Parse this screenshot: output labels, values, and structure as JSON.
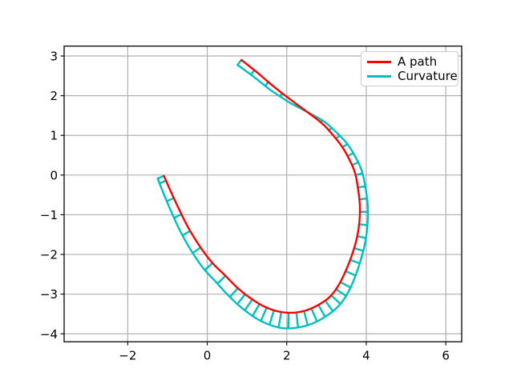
{
  "figure": {
    "background": "#FFFFFF"
  },
  "chart_data": {
    "type": "line",
    "title": "",
    "xlabel": "",
    "ylabel": "",
    "grid": true,
    "grid_color": "#B0B0B0",
    "spine_color": "#000000",
    "xlim": [
      -3.6,
      6.4
    ],
    "ylim": [
      -4.2,
      3.25
    ],
    "xticks": [
      {
        "v": -2,
        "label": "−2"
      },
      {
        "v": 0,
        "label": "0"
      },
      {
        "v": 2,
        "label": "2"
      },
      {
        "v": 4,
        "label": "4"
      },
      {
        "v": 6,
        "label": "6"
      }
    ],
    "yticks": [
      {
        "v": 3,
        "label": "3"
      },
      {
        "v": 2,
        "label": "2"
      },
      {
        "v": 1,
        "label": "1"
      },
      {
        "v": 0,
        "label": "0"
      },
      {
        "v": -1,
        "label": "−1"
      },
      {
        "v": -2,
        "label": "−2"
      },
      {
        "v": -3,
        "label": "−3"
      },
      {
        "v": -4,
        "label": "−4"
      }
    ],
    "legend": {
      "position": "upper right",
      "entries": [
        {
          "label": "A path",
          "color": "#FF0000"
        },
        {
          "label": "Curvature",
          "color": "#00BFBF"
        }
      ]
    },
    "series": [
      {
        "name": "A path",
        "kind": "path",
        "color": "#FF0000",
        "points": [
          [
            0.86,
            2.9
          ],
          [
            1.25,
            2.59
          ],
          [
            1.66,
            2.24
          ],
          [
            2.07,
            1.92
          ],
          [
            2.5,
            1.6
          ],
          [
            2.89,
            1.3
          ],
          [
            3.16,
            1.01
          ],
          [
            3.4,
            0.7
          ],
          [
            3.58,
            0.38
          ],
          [
            3.72,
            0.04
          ],
          [
            3.8,
            -0.4
          ],
          [
            3.84,
            -0.82
          ],
          [
            3.82,
            -1.24
          ],
          [
            3.75,
            -1.64
          ],
          [
            3.63,
            -2.04
          ],
          [
            3.48,
            -2.42
          ],
          [
            3.3,
            -2.78
          ],
          [
            3.08,
            -3.07
          ],
          [
            2.78,
            -3.28
          ],
          [
            2.45,
            -3.42
          ],
          [
            2.1,
            -3.47
          ],
          [
            1.76,
            -3.43
          ],
          [
            1.43,
            -3.31
          ],
          [
            1.1,
            -3.11
          ],
          [
            0.77,
            -2.85
          ],
          [
            0.44,
            -2.52
          ],
          [
            0.1,
            -2.18
          ],
          [
            -0.21,
            -1.76
          ],
          [
            -0.48,
            -1.32
          ],
          [
            -0.7,
            -0.88
          ],
          [
            -0.9,
            -0.45
          ],
          [
            -1.09,
            -0.02
          ]
        ]
      },
      {
        "name": "Curvature",
        "kind": "curvature_comb",
        "color": "#00BFBF",
        "comb_profile": [
          [
            0,
            0.16
          ],
          [
            2,
            0.12
          ],
          [
            3.2,
            0.07
          ],
          [
            4,
            0.0
          ],
          [
            5,
            -0.07
          ],
          [
            7,
            -0.15
          ],
          [
            9,
            -0.18
          ],
          [
            11,
            -0.2
          ],
          [
            12,
            -0.21
          ],
          [
            14,
            -0.25
          ],
          [
            17,
            -0.32
          ],
          [
            19,
            -0.37
          ],
          [
            20.5,
            -0.4
          ],
          [
            22,
            -0.36
          ],
          [
            24,
            -0.3
          ],
          [
            26,
            -0.26
          ],
          [
            28,
            -0.22
          ],
          [
            30,
            -0.19
          ],
          [
            31,
            -0.17
          ]
        ],
        "teeth_t": [
          0,
          0.85,
          1.7,
          2.55,
          3.4,
          4.9,
          5.6,
          6.3,
          7.0,
          7.7,
          8.4,
          9.1,
          9.8,
          10.5,
          11.25,
          12.0,
          12.75,
          13.5,
          14.25,
          15.0,
          15.75,
          16.3,
          16.85,
          17.4,
          17.95,
          18.5,
          19.05,
          19.6,
          20.15,
          20.7,
          21.25,
          21.8,
          22.35,
          22.9,
          23.45,
          24.0,
          24.95,
          25.9,
          26.85,
          27.8,
          28.75,
          29.7,
          30.65,
          31
        ]
      }
    ]
  }
}
